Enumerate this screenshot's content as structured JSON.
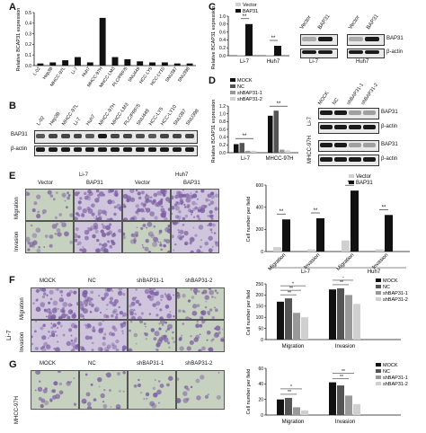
{
  "panels": {
    "A": {
      "letter": "A",
      "ylabel": "Relative BCAP31 expression",
      "categories": [
        "L-02",
        "Hep3B",
        "MHCC-97L",
        "Li-7",
        "Huh7",
        "MHCC-97H",
        "MHCC-LM3",
        "PLC/PRF/5",
        "SNU449",
        "HCC-LY5",
        "HCC-LY10",
        "SNU387",
        "SNU398"
      ],
      "values": [
        0.02,
        0.03,
        0.05,
        0.08,
        0.03,
        0.45,
        0.08,
        0.06,
        0.04,
        0.03,
        0.03,
        0.02,
        0.02
      ],
      "ylim": [
        0,
        0.5
      ],
      "yticks": [
        "0.0",
        "0.1",
        "0.2",
        "0.3",
        "0.4",
        "0.5"
      ]
    },
    "B": {
      "letter": "B",
      "lanes": [
        "L-02",
        "Hep3B",
        "MHCC-97L",
        "Li-7",
        "Huh7",
        "MHCC-97H",
        "MHCC-LM3",
        "PLC/PRF/5",
        "SNU449",
        "HCC-LY5",
        "HCC-LY10",
        "SNU387",
        "SNU398"
      ],
      "rows": [
        "BAP31",
        "β-actin"
      ]
    },
    "C": {
      "letter": "C",
      "ylabel": "Relative BCAP31 expression",
      "legend": [
        "Vector",
        "BAP31"
      ],
      "groups": [
        "Li-7",
        "Huh7"
      ],
      "sig": [
        "**",
        "**"
      ],
      "yticks": [
        "0.0",
        "0.2",
        "0.4",
        "0.6",
        "0.8",
        "1.0"
      ],
      "blot_lanes": [
        "Vector",
        "BAP31",
        "Vector",
        "BAP31"
      ],
      "blot_rows": [
        "BAP31",
        "β-actin"
      ],
      "blot_groups": [
        "Li-7",
        "Huh7"
      ]
    },
    "D": {
      "letter": "D",
      "ylabel": "Relative BCAP31 expression",
      "legend": [
        "MOCK",
        "NC",
        "shBAP31-1",
        "shBAP31-2"
      ],
      "groups": [
        "Li-7",
        "MHCC-97H"
      ],
      "sig": [
        "**",
        "**"
      ],
      "yticks": [
        "0.0",
        "0.2",
        "0.4",
        "0.6",
        "0.8",
        "1.0",
        "1.2"
      ],
      "blot_lanes": [
        "MOCK",
        "NC",
        "shBAP31-1",
        "shBAP31-2"
      ],
      "blot_rows": [
        "BAP31",
        "β-actin",
        "BAP31",
        "β-actin"
      ],
      "blot_groups": [
        "Li-7",
        "MHCC-97H"
      ]
    },
    "E": {
      "letter": "E",
      "col_groups": [
        "Li-7",
        "Huh7"
      ],
      "cols": [
        "Vector",
        "BAP31",
        "Vector",
        "BAP31"
      ],
      "rows": [
        "Migration",
        "Invasion"
      ],
      "ylabel": "Cell number per field",
      "legend": [
        "Vector",
        "BAP31"
      ],
      "yticks": [
        "0",
        "200",
        "400",
        "600"
      ],
      "xcats": [
        "Migration",
        "Invasion",
        "Migration",
        "Invasion"
      ],
      "xgroups": [
        "Li-7",
        "Huh7"
      ],
      "sig": [
        "**",
        "**",
        "**",
        "**"
      ]
    },
    "F": {
      "letter": "F",
      "side": "Li-7",
      "cols": [
        "MOCK",
        "NC",
        "shBAP31-1",
        "shBAP31-2"
      ],
      "rows": [
        "Migration",
        "Invasion"
      ],
      "ylabel": "Cell number per field",
      "legend": [
        "MOCK",
        "NC",
        "shBAP31-1",
        "shBAP31-2"
      ],
      "yticks": [
        "0",
        "50",
        "100",
        "150",
        "200",
        "250"
      ],
      "xcats": [
        "Migration",
        "Invasion"
      ],
      "sig": [
        "**",
        "**",
        "*",
        "**",
        "*",
        "**"
      ]
    },
    "G": {
      "letter": "G",
      "side": "MHCC-97H",
      "cols": [
        "MOCK",
        "NC",
        "shBAP31-1",
        "shBAP31-2"
      ],
      "ylabel": "Cell number per field",
      "legend": [
        "MOCK",
        "NC",
        "shBAP31-1",
        "shBAP31-2"
      ],
      "yticks": [
        "0",
        "20",
        "40",
        "60"
      ],
      "xcats": [
        "Migration",
        "Invasion"
      ],
      "sig": [
        "**",
        "*",
        "**",
        "**"
      ]
    }
  },
  "chart_data": [
    {
      "type": "bar",
      "panel": "A",
      "categories": [
        "L-02",
        "Hep3B",
        "MHCC-97L",
        "Li-7",
        "Huh7",
        "MHCC-97H",
        "MHCC-LM3",
        "PLC/PRF/5",
        "SNU449",
        "HCC-LY5",
        "HCC-LY10",
        "SNU387",
        "SNU398"
      ],
      "values": [
        0.02,
        0.03,
        0.05,
        0.08,
        0.03,
        0.45,
        0.08,
        0.06,
        0.04,
        0.03,
        0.03,
        0.02,
        0.02
      ],
      "ylabel": "Relative BCAP31 expression",
      "ylim": [
        0,
        0.5
      ]
    },
    {
      "type": "bar",
      "panel": "C",
      "categories": [
        "Li-7",
        "Huh7"
      ],
      "series": [
        {
          "name": "Vector",
          "values": [
            0.02,
            0.02
          ]
        },
        {
          "name": "BAP31",
          "values": [
            0.8,
            0.25
          ]
        }
      ],
      "ylim": [
        0,
        1.0
      ]
    },
    {
      "type": "bar",
      "panel": "D",
      "categories": [
        "Li-7",
        "MHCC-97H"
      ],
      "series": [
        {
          "name": "MOCK",
          "values": [
            0.22,
            0.95
          ]
        },
        {
          "name": "NC",
          "values": [
            0.25,
            1.08
          ]
        },
        {
          "name": "shBAP31-1",
          "values": [
            0.05,
            0.08
          ]
        },
        {
          "name": "shBAP31-2",
          "values": [
            0.05,
            0.06
          ]
        }
      ],
      "ylim": [
        0,
        1.2
      ]
    },
    {
      "type": "bar",
      "panel": "E",
      "categories": [
        "Li-7 Migration",
        "Li-7 Invasion",
        "Huh7 Migration",
        "Huh7 Invasion"
      ],
      "series": [
        {
          "name": "Vector",
          "values": [
            40,
            20,
            100,
            20
          ]
        },
        {
          "name": "BAP31",
          "values": [
            290,
            300,
            550,
            330
          ]
        }
      ],
      "ylim": [
        0,
        600
      ]
    },
    {
      "type": "bar",
      "panel": "F",
      "categories": [
        "Migration",
        "Invasion"
      ],
      "series": [
        {
          "name": "MOCK",
          "values": [
            170,
            225
          ]
        },
        {
          "name": "NC",
          "values": [
            185,
            230
          ]
        },
        {
          "name": "shBAP31-1",
          "values": [
            120,
            200
          ]
        },
        {
          "name": "shBAP31-2",
          "values": [
            100,
            160
          ]
        }
      ],
      "ylim": [
        0,
        250
      ]
    },
    {
      "type": "bar",
      "panel": "G",
      "categories": [
        "Migration",
        "Invasion"
      ],
      "series": [
        {
          "name": "MOCK",
          "values": [
            20,
            42
          ]
        },
        {
          "name": "NC",
          "values": [
            22,
            38
          ]
        },
        {
          "name": "shBAP31-1",
          "values": [
            10,
            25
          ]
        },
        {
          "name": "shBAP31-2",
          "values": [
            6,
            14
          ]
        }
      ],
      "ylim": [
        0,
        60
      ]
    }
  ],
  "colors": {
    "black": "#111111",
    "dark_gray": "#555555",
    "mid_gray": "#999999",
    "light_gray": "#d0d0d0",
    "stain_purple": "#7d5fa3",
    "stain_bg": "#cfc6dd",
    "stain_green": "#c6d1bf"
  }
}
